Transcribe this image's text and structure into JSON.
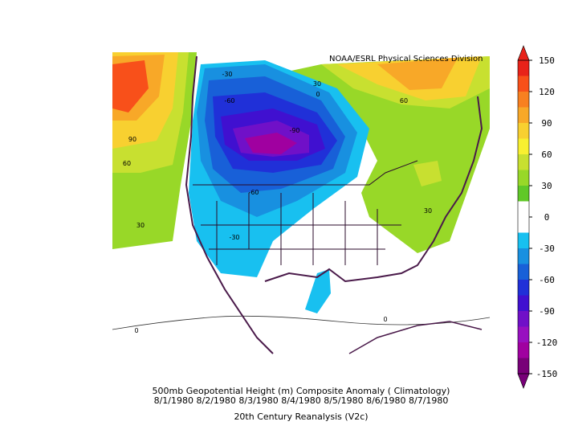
{
  "header": {
    "credit": "NOAA/ESRL Physical Sciences Division"
  },
  "colorbar": {
    "clim": [
      -150,
      150
    ],
    "ticks": [
      150,
      120,
      90,
      60,
      30,
      0,
      -30,
      -60,
      -90,
      -120,
      -150
    ],
    "colors": [
      "#e8231a",
      "#f8501a",
      "#f88020",
      "#f8a828",
      "#f8d030",
      "#f8f030",
      "#c8e030",
      "#98d828",
      "#60c828",
      "#ffffff",
      "#ffffff",
      "#18c0f0",
      "#1890e0",
      "#1860d8",
      "#2030d8",
      "#4010d0",
      "#7010c8",
      "#9810c0",
      "#a000a0",
      "#780078"
    ]
  },
  "map": {
    "contour_labels": [
      -30,
      -60,
      -90,
      -60,
      -30,
      30,
      0,
      60,
      90,
      60,
      30,
      0,
      0,
      30
    ]
  },
  "caption": {
    "title": "500mb Geopotential Height (m) Composite Anomaly ( Climatology)",
    "dates": "8/1/1980 8/2/1980 8/3/1980 8/4/1980 8/5/1980 8/6/1980 8/7/1980",
    "source": "20th Century Reanalysis (V2c)"
  }
}
